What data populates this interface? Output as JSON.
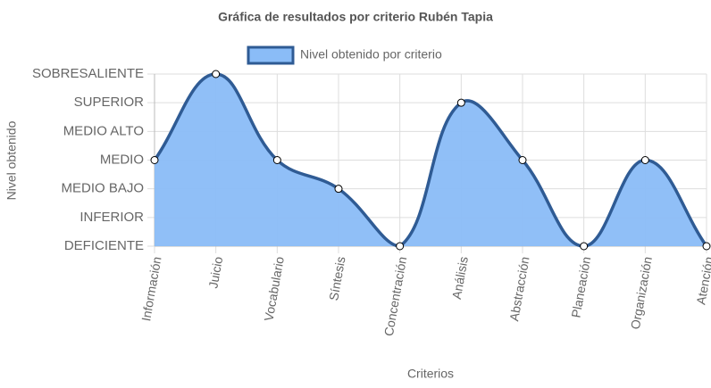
{
  "chart_data": {
    "type": "line",
    "title": "Gráfica de resultados por criterio Rubén Tapia",
    "x_label": "Criterios",
    "y_label": "Nivel obtenido",
    "categories": [
      "Información",
      "Juicio",
      "Vocabulario",
      "Síntesis",
      "Concentración",
      "Análisis",
      "Abstracción",
      "Planeación",
      "Organización",
      "Atención"
    ],
    "series": [
      {
        "name": "Nivel obtenido por criterio",
        "color": "#2f5b94",
        "fill": "#8abcf7",
        "values": [
          3,
          6,
          3,
          2,
          0,
          5,
          3,
          0,
          3,
          0
        ]
      }
    ],
    "ylim": [
      0,
      6
    ],
    "yticks": [
      {
        "value": 0,
        "label": "DEFICIENTE"
      },
      {
        "value": 1,
        "label": "INFERIOR"
      },
      {
        "value": 2,
        "label": "MEDIO BAJO"
      },
      {
        "value": 3,
        "label": "MEDIO"
      },
      {
        "value": 4,
        "label": "MEDIO ALTO"
      },
      {
        "value": 5,
        "label": "SUPERIOR"
      },
      {
        "value": 6,
        "label": "SOBRESALIENTE"
      }
    ],
    "grid": true,
    "legend": "top"
  }
}
